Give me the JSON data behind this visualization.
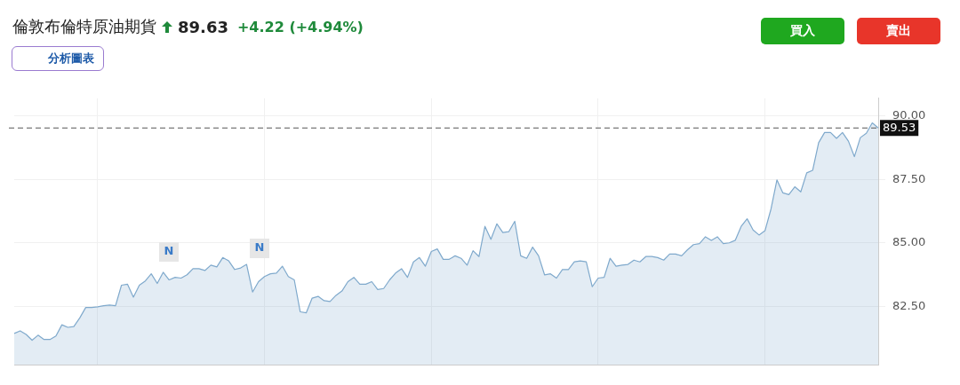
{
  "chart_data": {
    "type": "area",
    "title": "倫敦布倫特原油期貨",
    "annotations": [
      "89.63",
      "+4.22 (+4.94%)",
      "分析圖表",
      "買入",
      "賣出",
      "N",
      "N"
    ],
    "categories": [
      null,
      null,
      null,
      null,
      null,
      null,
      null,
      null,
      null,
      null,
      null,
      null,
      null,
      null,
      null,
      null,
      null,
      null,
      null,
      null,
      null,
      null,
      null,
      null,
      null,
      null,
      null,
      null,
      null,
      null,
      null,
      null,
      null,
      null,
      null,
      null,
      null,
      null,
      null,
      null,
      null,
      null,
      null,
      null,
      null,
      null,
      null,
      null,
      null,
      null,
      null,
      null,
      null,
      null,
      null,
      null,
      null,
      null,
      null,
      null,
      null,
      null,
      null,
      null,
      null,
      null,
      null,
      null,
      null,
      null,
      null,
      null,
      null,
      null,
      null,
      null,
      null,
      null,
      null,
      null,
      null,
      null,
      null,
      null,
      null,
      null,
      null,
      null,
      null,
      null,
      null,
      null,
      null,
      null,
      null,
      null,
      null,
      null,
      null,
      null,
      null,
      null,
      null,
      null,
      null,
      null,
      null,
      null,
      null,
      null,
      null,
      null,
      null,
      null,
      null,
      null,
      null,
      null,
      null,
      null,
      null,
      null,
      null,
      null,
      null,
      null,
      null,
      null,
      null,
      null,
      null,
      null,
      null,
      null,
      null,
      null,
      null,
      null,
      null,
      null,
      null,
      null,
      null,
      null,
      null,
      null
    ],
    "series": [
      {
        "color": "#7fa9cc",
        "values": [
          81.43,
          81.53,
          81.39,
          81.16,
          81.36,
          81.19,
          81.19,
          81.33,
          81.77,
          81.67,
          81.7,
          82.04,
          82.45,
          82.45,
          82.48,
          82.52,
          82.55,
          82.52,
          83.33,
          83.37,
          82.86,
          83.33,
          83.5,
          83.78,
          83.4,
          83.84,
          83.54,
          83.64,
          83.61,
          83.74,
          83.98,
          83.98,
          83.91,
          84.12,
          84.05,
          84.42,
          84.29,
          83.95,
          84.01,
          84.15,
          83.06,
          83.47,
          83.67,
          83.78,
          83.81,
          84.08,
          83.67,
          83.54,
          82.28,
          82.24,
          82.82,
          82.89,
          82.72,
          82.69,
          82.93,
          83.1,
          83.47,
          83.64,
          83.37,
          83.37,
          83.47,
          83.16,
          83.2,
          83.54,
          83.81,
          83.98,
          83.64,
          84.25,
          84.42,
          84.08,
          84.66,
          84.76,
          84.35,
          84.35,
          84.49,
          84.39,
          84.12,
          84.69,
          84.46,
          85.65,
          85.14,
          85.75,
          85.41,
          85.44,
          85.85,
          84.49,
          84.39,
          84.83,
          84.49,
          83.74,
          83.78,
          83.61,
          83.95,
          83.95,
          84.25,
          84.29,
          84.25,
          83.27,
          83.61,
          83.64,
          84.39,
          84.08,
          84.12,
          84.15,
          84.32,
          84.25,
          84.46,
          84.46,
          84.42,
          84.32,
          84.56,
          84.56,
          84.49,
          84.73,
          84.93,
          84.97,
          85.24,
          85.1,
          85.24,
          84.97,
          85.0,
          85.1,
          85.65,
          85.95,
          85.51,
          85.31,
          85.48,
          86.33,
          87.48,
          86.97,
          86.9,
          87.21,
          87.01,
          87.76,
          87.86,
          88.95,
          89.35,
          89.35,
          89.12,
          89.35,
          89.01,
          88.4,
          89.15,
          89.32,
          89.73,
          89.53
        ]
      }
    ],
    "ylim": [
      80.2,
      90.7
    ],
    "yticks": [
      {
        "value": 82.5,
        "label": "82.50"
      },
      {
        "value": 85,
        "label": "85.00"
      },
      {
        "value": 87.5,
        "label": "87.50"
      },
      {
        "value": 90,
        "label": "90.00"
      }
    ],
    "ref_lines": [
      {
        "axis": "y",
        "value": 89.53,
        "label": "89.53",
        "color": "#555555",
        "line_style": "dashed"
      }
    ],
    "grid": true,
    "legend": false
  }
}
